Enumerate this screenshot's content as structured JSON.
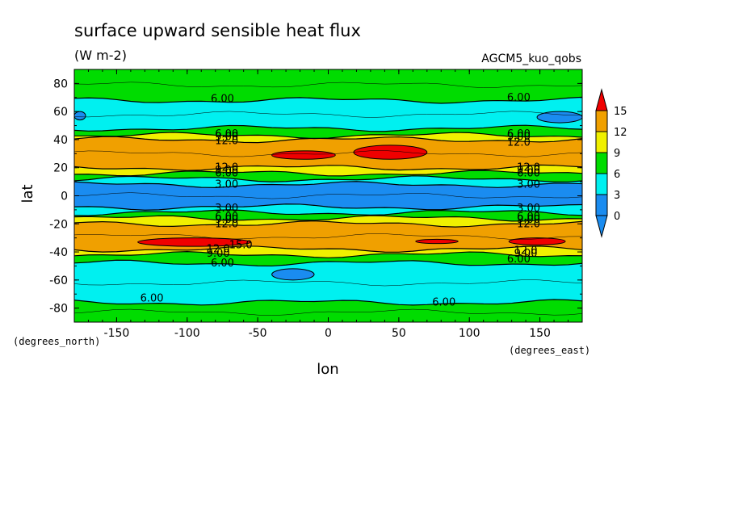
{
  "chart_data": {
    "type": "heatmap",
    "title": "surface upward sensible heat flux",
    "units": "(W m-2)",
    "source_label": "AGCM5_kuo_qobs",
    "xlabel": "lon",
    "ylabel": "lat",
    "x_units_label": "(degrees_east)",
    "y_units_label": "(degrees_north)",
    "xlim": [
      -180,
      180
    ],
    "ylim": [
      -90,
      90
    ],
    "x_ticks": [
      -150,
      -100,
      -50,
      0,
      50,
      100,
      150
    ],
    "y_ticks": [
      80,
      60,
      40,
      20,
      0,
      -20,
      -40,
      -60,
      -80
    ],
    "x_tick_labels": [
      "-150",
      "-100",
      "-50",
      "0",
      "50",
      "100",
      "150"
    ],
    "y_tick_labels": [
      "80",
      "60",
      "40",
      "20",
      "0",
      "-20",
      "-40",
      "-60",
      "-80"
    ],
    "colorbar": {
      "levels": [
        0,
        3,
        6,
        9,
        12,
        15
      ],
      "labels": [
        "0",
        "3",
        "6",
        "9",
        "12",
        "15"
      ],
      "colors": [
        "#1a8cf0",
        "#00f0f0",
        "#00dc00",
        "#f0f000",
        "#f0a000",
        "#f00000"
      ],
      "extend": "both"
    },
    "bands": [
      {
        "lat_from": 90,
        "lat_to": 68,
        "level": 6
      },
      {
        "lat_from": 68,
        "lat_to": 48,
        "level": 3
      },
      {
        "lat_from": 48,
        "lat_to": 43,
        "level": 6
      },
      {
        "lat_from": 43,
        "lat_to": 40,
        "level": 9
      },
      {
        "lat_from": 40,
        "lat_to": 20,
        "level": 12
      },
      {
        "lat_from": 20,
        "lat_to": 16,
        "level": 9
      },
      {
        "lat_from": 16,
        "lat_to": 12,
        "level": 6
      },
      {
        "lat_from": 12,
        "lat_to": 8,
        "level": 3
      },
      {
        "lat_from": 8,
        "lat_to": -8,
        "level": 0
      },
      {
        "lat_from": -8,
        "lat_to": -12,
        "level": 3
      },
      {
        "lat_from": -12,
        "lat_to": -16,
        "level": 6
      },
      {
        "lat_from": -16,
        "lat_to": -20,
        "level": 9
      },
      {
        "lat_from": -20,
        "lat_to": -38,
        "level": 12
      },
      {
        "lat_from": -38,
        "lat_to": -42,
        "level": 9
      },
      {
        "lat_from": -42,
        "lat_to": -48,
        "level": 6
      },
      {
        "lat_from": -48,
        "lat_to": -76,
        "level": 3
      },
      {
        "lat_from": -76,
        "lat_to": -90,
        "level": 6
      }
    ],
    "patches": [
      {
        "lon": [
          -40,
          5
        ],
        "lat": [
          32,
          26
        ],
        "level": 15
      },
      {
        "lon": [
          18,
          70
        ],
        "lat": [
          36,
          26
        ],
        "level": 15
      },
      {
        "lon": [
          -135,
          -55
        ],
        "lat": [
          -30,
          -36
        ],
        "level": 15
      },
      {
        "lon": [
          62,
          92
        ],
        "lat": [
          -31,
          -34
        ],
        "level": 15
      },
      {
        "lon": [
          128,
          168
        ],
        "lat": [
          -30,
          -35
        ],
        "level": 15
      },
      {
        "lon": [
          -40,
          -10
        ],
        "lat": [
          -52,
          -60
        ],
        "level": 0
      },
      {
        "lon": [
          148,
          180
        ],
        "lat": [
          60,
          52
        ],
        "level": 0
      },
      {
        "lon": [
          -180,
          -172
        ],
        "lat": [
          60,
          54
        ],
        "level": 0
      }
    ],
    "contour_labels": [
      {
        "text": "6.00",
        "lon": -75,
        "lat": 69
      },
      {
        "text": "6.00",
        "lon": 135,
        "lat": 70
      },
      {
        "text": "6.00",
        "lon": -72,
        "lat": 44
      },
      {
        "text": "9.00",
        "lon": -72,
        "lat": 42
      },
      {
        "text": "12.0",
        "lon": -72,
        "lat": 39
      },
      {
        "text": "6.00",
        "lon": 135,
        "lat": 44
      },
      {
        "text": "9.00",
        "lon": 135,
        "lat": 42
      },
      {
        "text": "12.0",
        "lon": 135,
        "lat": 38
      },
      {
        "text": "12.0",
        "lon": -72,
        "lat": 20
      },
      {
        "text": "9.00",
        "lon": -72,
        "lat": 18
      },
      {
        "text": "6.00",
        "lon": -72,
        "lat": 16
      },
      {
        "text": "3.00",
        "lon": -72,
        "lat": 8
      },
      {
        "text": "12.0",
        "lon": 142,
        "lat": 20
      },
      {
        "text": "9.00",
        "lon": 142,
        "lat": 18
      },
      {
        "text": "6.00",
        "lon": 142,
        "lat": 16
      },
      {
        "text": "3.00",
        "lon": 142,
        "lat": 8
      },
      {
        "text": "3.00",
        "lon": -72,
        "lat": -9
      },
      {
        "text": "6.00",
        "lon": -72,
        "lat": -15
      },
      {
        "text": "9.00",
        "lon": -72,
        "lat": -17
      },
      {
        "text": "12.0",
        "lon": -72,
        "lat": -20
      },
      {
        "text": "3.00",
        "lon": 142,
        "lat": -9
      },
      {
        "text": "6.00",
        "lon": 142,
        "lat": -15
      },
      {
        "text": "9.00",
        "lon": 142,
        "lat": -17
      },
      {
        "text": "12.0",
        "lon": 142,
        "lat": -20
      },
      {
        "text": "15.0",
        "lon": -62,
        "lat": -35
      },
      {
        "text": "12.0",
        "lon": -78,
        "lat": -38
      },
      {
        "text": "9.00",
        "lon": -78,
        "lat": -41
      },
      {
        "text": "6.00",
        "lon": -75,
        "lat": -48
      },
      {
        "text": "12.0",
        "lon": 140,
        "lat": -39
      },
      {
        "text": "9.00",
        "lon": 140,
        "lat": -41
      },
      {
        "text": "6.00",
        "lon": 135,
        "lat": -45
      },
      {
        "text": "6.00",
        "lon": -125,
        "lat": -73
      },
      {
        "text": "6.00",
        "lon": 82,
        "lat": -76
      }
    ]
  }
}
